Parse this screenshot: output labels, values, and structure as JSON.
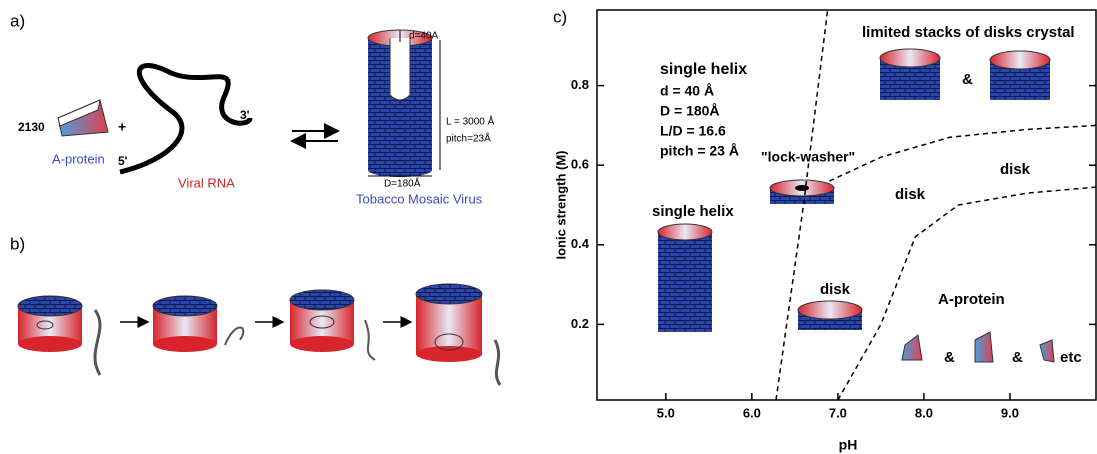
{
  "panel_a": {
    "label": "a)",
    "count": "2130",
    "plus": "+",
    "protein_label": "A-protein",
    "rna_end_5": "5'",
    "rna_end_3": "3'",
    "rna_label": "Viral RNA",
    "inner_diameter": "d=40A",
    "length": "L = 3000 Å",
    "pitch": "pitch=23Å",
    "outer_diameter": "D=180Å",
    "virus_label": "Tobacco Mosaic Virus"
  },
  "panel_b": {
    "label": "b)"
  },
  "chart_data": {
    "type": "phase-diagram",
    "panel_label": "c)",
    "x_label": "pH",
    "y_label": "Ionic strength (M)",
    "xlim": [
      4.2,
      10.0
    ],
    "ylim": [
      0.01,
      0.99
    ],
    "xticks": [
      {
        "value": 5,
        "label": "5.0"
      },
      {
        "value": 6,
        "label": "6.0"
      },
      {
        "value": 7,
        "label": "7.0"
      },
      {
        "value": 8,
        "label": "8.0"
      },
      {
        "value": 9,
        "label": "9.0"
      }
    ],
    "yticks": [
      0.2,
      0.4,
      0.6,
      0.8
    ],
    "boundaries": [
      {
        "x": [
          6.28,
          6.6,
          6.88
        ],
        "y": [
          0.01,
          0.5,
          0.99
        ]
      },
      {
        "x": [
          6.9,
          7.5,
          8.3,
          9.2,
          10.0
        ],
        "y": [
          0.56,
          0.62,
          0.67,
          0.69,
          0.7
        ]
      },
      {
        "x": [
          7.0,
          7.5,
          7.9,
          8.4,
          9.2,
          10.0
        ],
        "y": [
          0.01,
          0.2,
          0.42,
          0.5,
          0.53,
          0.545
        ]
      }
    ],
    "annotations": [
      "single helix",
      "d = 40 Å",
      "D = 180Å",
      "L/D = 16.6",
      "pitch = 23 Å",
      "limited stacks of disks crystal",
      "&",
      "\"lock-washer\"",
      "disk",
      "disk",
      "single helix",
      "disk",
      "A-protein",
      "&",
      "&",
      "etc"
    ]
  }
}
